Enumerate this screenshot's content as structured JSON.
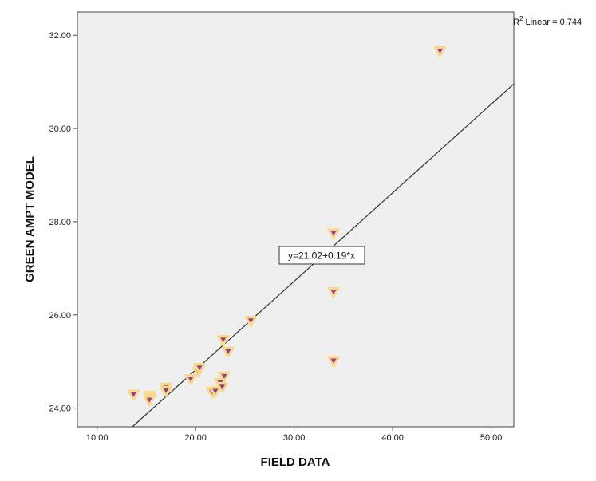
{
  "chart_data": {
    "type": "scatter",
    "xlabel": "FIELD DATA",
    "ylabel": "GREEN AMPT MODEL",
    "xlim": [
      8,
      52.3
    ],
    "ylim": [
      23.6,
      32.5
    ],
    "xticks": [
      "10.00",
      "20.00",
      "30.00",
      "40.00",
      "50.00"
    ],
    "yticks": [
      "24.00",
      "26.00",
      "28.00",
      "30.00",
      "32.00"
    ],
    "xtick_values": [
      10,
      20,
      30,
      40,
      50
    ],
    "ytick_values": [
      24,
      26,
      28,
      30,
      32
    ],
    "grid": false,
    "background_color": "#efefef",
    "marker_fill": "#9e3a8e",
    "marker_halo": "#f5d98c",
    "line_color": "#333333",
    "fit": {
      "intercept": 21.02,
      "slope": 0.19,
      "equation_label": "y=21.02+0.19*x",
      "r_squared_prefix": "R",
      "r_squared_exp": "2",
      "r_squared_suffix": " Linear = 0.744"
    },
    "points": [
      {
        "x": 13.7,
        "y": 24.3
      },
      {
        "x": 15.3,
        "y": 24.27
      },
      {
        "x": 15.4,
        "y": 24.22
      },
      {
        "x": 15.3,
        "y": 24.18
      },
      {
        "x": 17.0,
        "y": 24.45
      },
      {
        "x": 17.0,
        "y": 24.38
      },
      {
        "x": 19.5,
        "y": 24.63
      },
      {
        "x": 20.3,
        "y": 24.8
      },
      {
        "x": 20.4,
        "y": 24.87
      },
      {
        "x": 21.7,
        "y": 24.35
      },
      {
        "x": 22.0,
        "y": 24.37
      },
      {
        "x": 22.5,
        "y": 24.55
      },
      {
        "x": 22.7,
        "y": 24.46
      },
      {
        "x": 22.9,
        "y": 24.69
      },
      {
        "x": 22.8,
        "y": 25.47
      },
      {
        "x": 23.3,
        "y": 25.22
      },
      {
        "x": 25.6,
        "y": 25.88
      },
      {
        "x": 34.0,
        "y": 27.76
      },
      {
        "x": 34.0,
        "y": 26.5
      },
      {
        "x": 34.0,
        "y": 25.02
      },
      {
        "x": 44.8,
        "y": 31.67
      }
    ]
  }
}
